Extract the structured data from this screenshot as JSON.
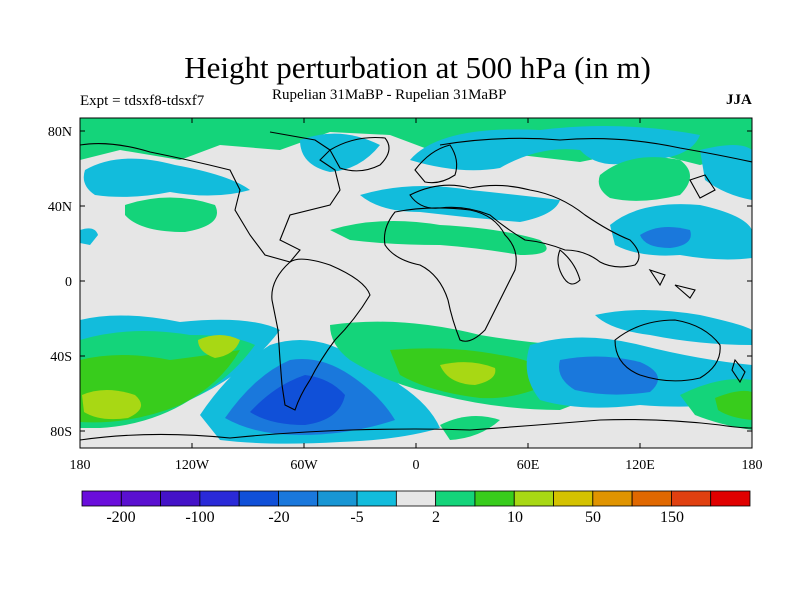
{
  "title": "Height perturbation at 500 hPa (in m)",
  "left_string": "Expt = tdsxf8-tdsxf7",
  "center_string": "Rupelian  31MaBP - Rupelian  31MaBP",
  "right_string": "JJA",
  "lat_labels": [
    "80N",
    "40N",
    "0",
    "40S",
    "80S"
  ],
  "lon_labels": [
    "180",
    "120W",
    "60W",
    "0",
    "60E",
    "120E",
    "180"
  ],
  "colorbar": {
    "colors": [
      "#6a0edb",
      "#5a10d0",
      "#4412c8",
      "#2a2ad8",
      "#1050d8",
      "#1a78dc",
      "#1896d4",
      "#12bcdc",
      "#e6e6e6",
      "#14d47a",
      "#38cc1c",
      "#a8d814",
      "#d4c200",
      "#e09400",
      "#e06800",
      "#e04010",
      "#e00000"
    ],
    "labels": [
      "-200",
      "-100",
      "-20",
      "-5",
      "2",
      "10",
      "50",
      "150"
    ]
  },
  "colors": {
    "neutral": "#e6e6e6",
    "cyan": "#12bcdc",
    "blue": "#1a78dc",
    "deep_blue": "#1050d8",
    "green": "#14d47a",
    "lime": "#38cc1c",
    "yellowgreen": "#a8d814"
  }
}
